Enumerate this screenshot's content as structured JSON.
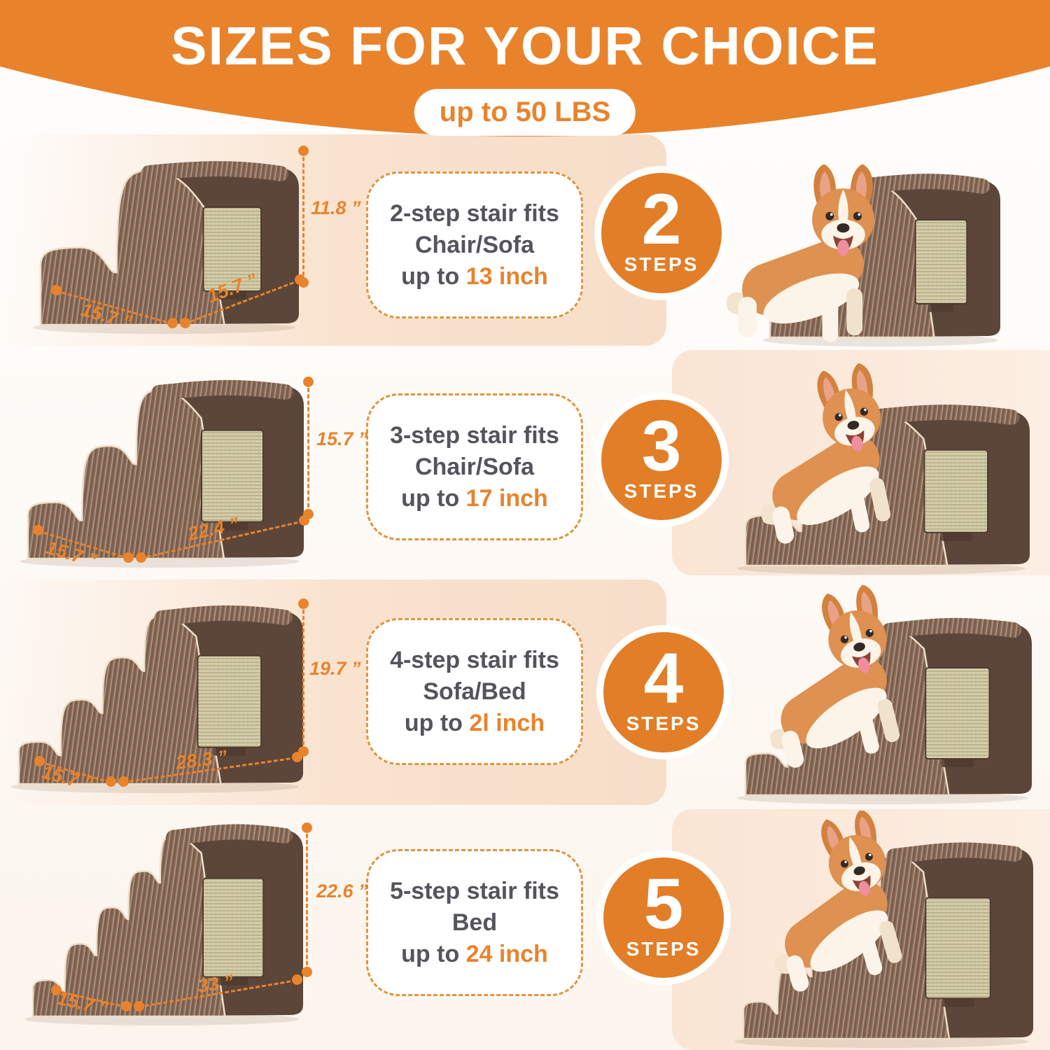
{
  "header": {
    "title": "SIZES FOR YOUR CHOICE",
    "badge": "up to 50 LBS"
  },
  "rows": [
    {
      "number": "2",
      "steps_word": "STEPS",
      "fits": {
        "line1": "2-step stair fits",
        "line2": "Chair/Sofa",
        "prefix": "up to ",
        "value": "13 inch"
      },
      "dims": {
        "height": "11.8 ”",
        "depth": "15.7 ”",
        "length": "15.7 ”"
      }
    },
    {
      "number": "3",
      "steps_word": "STEPS",
      "fits": {
        "line1": "3-step stair fits",
        "line2": "Chair/Sofa",
        "prefix": "up to ",
        "value": "17 inch"
      },
      "dims": {
        "height": "15.7 ”",
        "depth": "15.7 ”",
        "length": "22.4 ”"
      }
    },
    {
      "number": "4",
      "steps_word": "STEPS",
      "fits": {
        "line1": "4-step stair fits",
        "line2": "Sofa/Bed",
        "prefix": "up to ",
        "value": "2l inch"
      },
      "dims": {
        "height": "19.7 ”",
        "depth": "15.7 ”",
        "length": "28.3 ”"
      }
    },
    {
      "number": "5",
      "steps_word": "STEPS",
      "fits": {
        "line1": "5-step stair fits",
        "line2": "Bed",
        "prefix": "up to ",
        "value": "24 inch"
      },
      "dims": {
        "height": "22.6 ”",
        "depth": "15.7 ”",
        "length": "33 ”"
      }
    }
  ],
  "colors": {
    "header_orange": "#E8832C",
    "accent_orange": "#E8832C",
    "circle_orange": "#E27E27",
    "dash_orange": "#E0953F",
    "text_gray": "#56545B",
    "band_peach": "#F8E0CC",
    "band_peach_light": "#FBE8DA"
  }
}
